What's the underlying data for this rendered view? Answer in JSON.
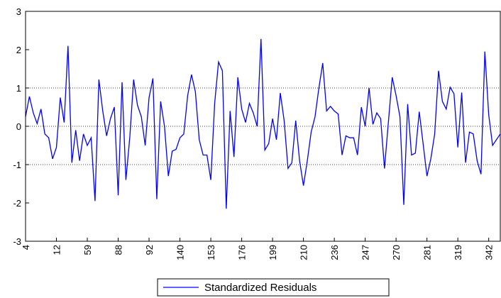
{
  "chart_data": {
    "type": "line",
    "categories": [
      "4",
      null,
      null,
      null,
      null,
      null,
      null,
      null,
      "12",
      null,
      null,
      null,
      null,
      null,
      null,
      null,
      "59",
      null,
      null,
      null,
      null,
      null,
      null,
      null,
      "88",
      null,
      null,
      null,
      null,
      null,
      null,
      null,
      "92",
      null,
      null,
      null,
      null,
      null,
      null,
      null,
      "140",
      null,
      null,
      null,
      null,
      null,
      null,
      null,
      "153",
      null,
      null,
      null,
      null,
      null,
      null,
      null,
      "176",
      null,
      null,
      null,
      null,
      null,
      null,
      null,
      "199",
      null,
      null,
      null,
      null,
      null,
      null,
      null,
      "210",
      null,
      null,
      null,
      null,
      null,
      null,
      null,
      "236",
      null,
      null,
      null,
      null,
      null,
      null,
      null,
      "247",
      null,
      null,
      null,
      null,
      null,
      null,
      null,
      "270",
      null,
      null,
      null,
      null,
      null,
      null,
      null,
      "281",
      null,
      null,
      null,
      null,
      null,
      null,
      null,
      "319",
      null,
      null,
      null,
      null,
      null,
      null,
      null,
      "342",
      null,
      null,
      null
    ],
    "series": [
      {
        "name": "Standardized Residuals",
        "color": "#0000ff",
        "values": [
          0.25,
          0.78,
          0.35,
          0.07,
          0.45,
          -0.2,
          -0.3,
          -0.85,
          -0.55,
          0.75,
          0.1,
          2.1,
          -0.95,
          -0.1,
          -0.9,
          -0.2,
          -0.5,
          -0.3,
          -1.95,
          1.22,
          0.4,
          -0.25,
          0.2,
          0.5,
          -1.8,
          1.15,
          -1.4,
          -0.3,
          1.22,
          0.55,
          0.25,
          -0.5,
          0.75,
          1.25,
          -1.9,
          0.65,
          0.0,
          -1.3,
          -0.65,
          -0.6,
          -0.3,
          -0.2,
          0.8,
          1.35,
          0.9,
          -0.35,
          -0.75,
          -0.75,
          -1.4,
          0.6,
          1.68,
          1.45,
          -2.15,
          0.4,
          -0.8,
          1.28,
          0.45,
          0.1,
          0.6,
          0.35,
          0.0,
          2.28,
          -0.62,
          -0.45,
          0.2,
          -0.35,
          0.87,
          0.15,
          -1.1,
          -0.95,
          0.15,
          -0.9,
          -1.55,
          -0.9,
          -0.15,
          0.25,
          1.0,
          1.65,
          0.4,
          0.52,
          0.4,
          0.32,
          -0.75,
          -0.25,
          -0.3,
          -0.3,
          -0.75,
          0.5,
          0.0,
          1.0,
          0.05,
          0.35,
          0.2,
          -1.1,
          0.1,
          1.28,
          0.8,
          0.25,
          -2.05,
          0.58,
          -0.75,
          -0.7,
          0.38,
          -0.45,
          -1.3,
          -0.85,
          -0.2,
          1.45,
          0.65,
          0.45,
          1.02,
          0.85,
          -0.55,
          0.88,
          -0.95,
          -0.15,
          -0.2,
          -0.9,
          -1.25,
          1.95,
          0.3,
          -0.5,
          -0.35,
          -0.2
        ]
      }
    ],
    "ylim": [
      -3,
      3
    ],
    "yticks": [
      -3,
      -2,
      -1,
      0,
      1,
      2,
      3
    ],
    "grid_lines": [
      -1,
      0,
      1
    ],
    "legend": "bottom"
  }
}
